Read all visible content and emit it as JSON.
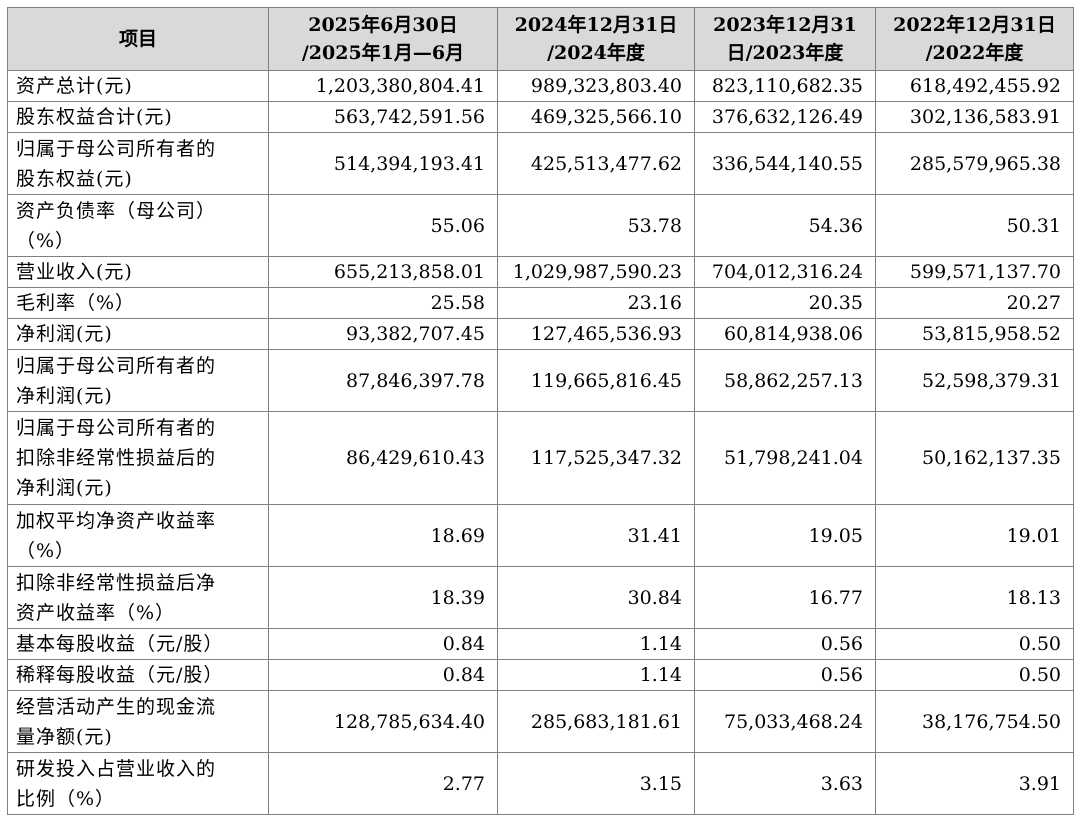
{
  "table": {
    "header": {
      "item": "项目",
      "cols": [
        [
          "2025年6月30日",
          "/2025年1月—6月"
        ],
        [
          "2024年12月31日",
          "/2024年度"
        ],
        [
          "2023年12月31",
          "日/2023年度"
        ],
        [
          "2022年12月31日",
          "/2022年度"
        ]
      ]
    },
    "rows": [
      {
        "label": [
          "资产总计(元)"
        ],
        "values": [
          "1,203,380,804.41",
          "989,323,803.40",
          "823,110,682.35",
          "618,492,455.92"
        ]
      },
      {
        "label": [
          "股东权益合计(元)"
        ],
        "values": [
          "563,742,591.56",
          "469,325,566.10",
          "376,632,126.49",
          "302,136,583.91"
        ]
      },
      {
        "label": [
          "归属于母公司所有者的",
          "股东权益(元)"
        ],
        "values": [
          "514,394,193.41",
          "425,513,477.62",
          "336,544,140.55",
          "285,579,965.38"
        ]
      },
      {
        "label": [
          "资产负债率（母公司）",
          "（%）"
        ],
        "values": [
          "55.06",
          "53.78",
          "54.36",
          "50.31"
        ]
      },
      {
        "label": [
          "营业收入(元)"
        ],
        "values": [
          "655,213,858.01",
          "1,029,987,590.23",
          "704,012,316.24",
          "599,571,137.70"
        ]
      },
      {
        "label": [
          "毛利率（%）"
        ],
        "values": [
          "25.58",
          "23.16",
          "20.35",
          "20.27"
        ]
      },
      {
        "label": [
          "净利润(元)"
        ],
        "values": [
          "93,382,707.45",
          "127,465,536.93",
          "60,814,938.06",
          "53,815,958.52"
        ]
      },
      {
        "label": [
          "归属于母公司所有者的",
          "净利润(元)"
        ],
        "values": [
          "87,846,397.78",
          "119,665,816.45",
          "58,862,257.13",
          "52,598,379.31"
        ]
      },
      {
        "label": [
          "归属于母公司所有者的",
          "扣除非经常性损益后的",
          "净利润(元)"
        ],
        "values": [
          "86,429,610.43",
          "117,525,347.32",
          "51,798,241.04",
          "50,162,137.35"
        ]
      },
      {
        "label": [
          "加权平均净资产收益率",
          "（%）"
        ],
        "values": [
          "18.69",
          "31.41",
          "19.05",
          "19.01"
        ]
      },
      {
        "label": [
          "扣除非经常性损益后净",
          "资产收益率（%）"
        ],
        "values": [
          "18.39",
          "30.84",
          "16.77",
          "18.13"
        ]
      },
      {
        "label": [
          "基本每股收益（元/股）"
        ],
        "values": [
          "0.84",
          "1.14",
          "0.56",
          "0.50"
        ]
      },
      {
        "label": [
          "稀释每股收益（元/股）"
        ],
        "values": [
          "0.84",
          "1.14",
          "0.56",
          "0.50"
        ]
      },
      {
        "label": [
          "经营活动产生的现金流",
          "量净额(元)"
        ],
        "values": [
          "128,785,634.40",
          "285,683,181.61",
          "75,033,468.24",
          "38,176,754.50"
        ]
      },
      {
        "label": [
          "研发投入占营业收入的",
          "比例（%）"
        ],
        "values": [
          "2.77",
          "3.15",
          "3.63",
          "3.91"
        ]
      }
    ]
  }
}
